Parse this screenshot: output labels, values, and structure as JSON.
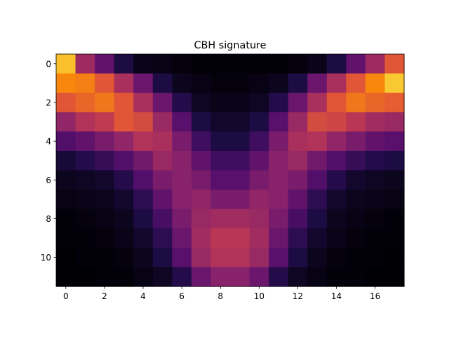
{
  "chart_data": {
    "type": "heatmap",
    "title": "CBH signature",
    "colormap": "inferno",
    "vmin": 0,
    "vmax": 1,
    "n_rows": 12,
    "n_cols": 18,
    "x_ticks": [
      0,
      2,
      4,
      6,
      8,
      10,
      12,
      14,
      16
    ],
    "y_ticks": [
      0,
      2,
      4,
      6,
      8,
      10
    ],
    "values": [
      [
        0.86,
        0.43,
        0.28,
        0.12,
        0.04,
        0.03,
        0.02,
        0.01,
        0.01,
        0.01,
        0.01,
        0.01,
        0.02,
        0.04,
        0.12,
        0.28,
        0.43,
        0.62
      ],
      [
        0.74,
        0.72,
        0.62,
        0.46,
        0.3,
        0.12,
        0.05,
        0.03,
        0.02,
        0.02,
        0.03,
        0.05,
        0.12,
        0.3,
        0.46,
        0.62,
        0.74,
        0.88
      ],
      [
        0.62,
        0.66,
        0.7,
        0.62,
        0.46,
        0.3,
        0.14,
        0.06,
        0.04,
        0.04,
        0.06,
        0.14,
        0.3,
        0.46,
        0.62,
        0.7,
        0.66,
        0.64
      ],
      [
        0.4,
        0.48,
        0.52,
        0.62,
        0.58,
        0.42,
        0.26,
        0.12,
        0.08,
        0.08,
        0.12,
        0.26,
        0.42,
        0.58,
        0.56,
        0.5,
        0.44,
        0.42
      ],
      [
        0.24,
        0.28,
        0.34,
        0.4,
        0.48,
        0.46,
        0.34,
        0.2,
        0.12,
        0.12,
        0.2,
        0.34,
        0.46,
        0.48,
        0.4,
        0.34,
        0.28,
        0.26
      ],
      [
        0.1,
        0.14,
        0.18,
        0.24,
        0.32,
        0.42,
        0.38,
        0.28,
        0.2,
        0.2,
        0.28,
        0.38,
        0.42,
        0.32,
        0.24,
        0.18,
        0.14,
        0.12
      ],
      [
        0.05,
        0.06,
        0.08,
        0.14,
        0.24,
        0.34,
        0.38,
        0.34,
        0.26,
        0.26,
        0.34,
        0.38,
        0.34,
        0.24,
        0.14,
        0.08,
        0.06,
        0.05
      ],
      [
        0.03,
        0.04,
        0.05,
        0.08,
        0.16,
        0.28,
        0.38,
        0.4,
        0.34,
        0.34,
        0.4,
        0.38,
        0.28,
        0.16,
        0.08,
        0.05,
        0.04,
        0.03
      ],
      [
        0.01,
        0.02,
        0.03,
        0.05,
        0.12,
        0.22,
        0.34,
        0.42,
        0.44,
        0.44,
        0.42,
        0.34,
        0.22,
        0.12,
        0.05,
        0.03,
        0.02,
        0.01
      ],
      [
        0.01,
        0.01,
        0.02,
        0.04,
        0.08,
        0.16,
        0.3,
        0.44,
        0.5,
        0.5,
        0.44,
        0.3,
        0.16,
        0.08,
        0.04,
        0.02,
        0.01,
        0.01
      ],
      [
        0.0,
        0.01,
        0.01,
        0.02,
        0.05,
        0.12,
        0.26,
        0.42,
        0.48,
        0.48,
        0.42,
        0.26,
        0.12,
        0.05,
        0.02,
        0.01,
        0.01,
        0.0
      ],
      [
        0.0,
        0.0,
        0.01,
        0.01,
        0.03,
        0.06,
        0.14,
        0.3,
        0.38,
        0.38,
        0.3,
        0.14,
        0.06,
        0.03,
        0.01,
        0.01,
        0.0,
        0.0
      ]
    ]
  }
}
